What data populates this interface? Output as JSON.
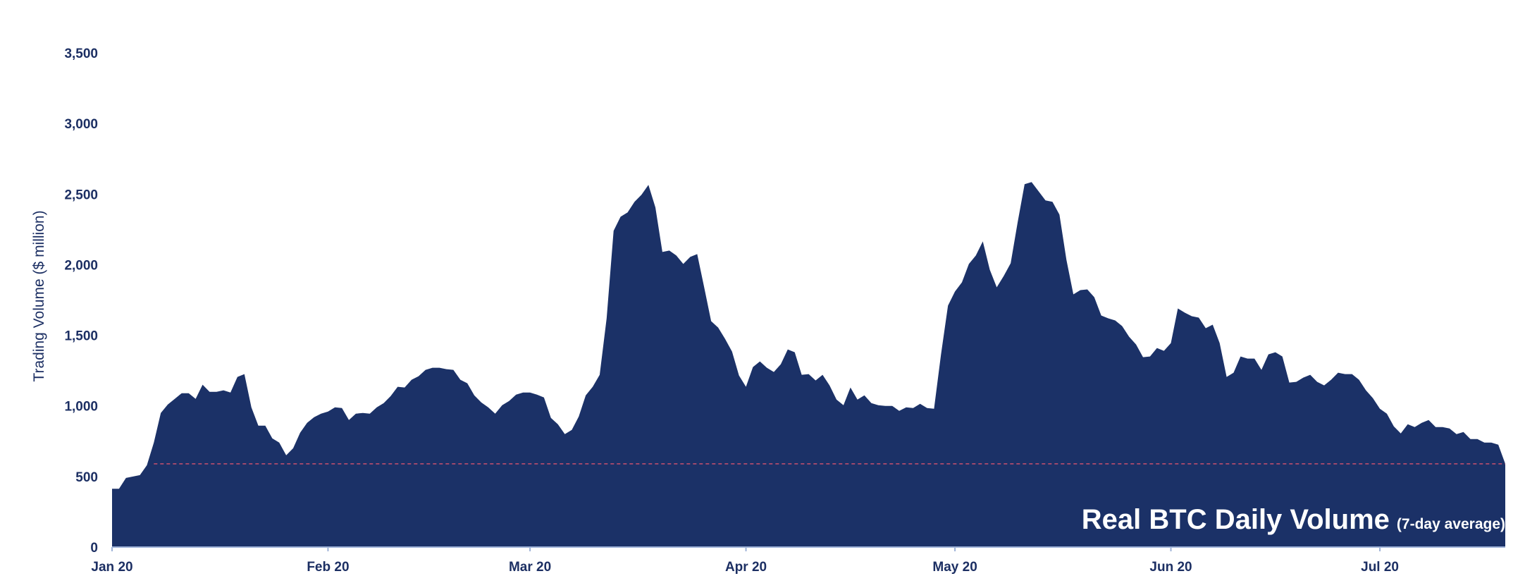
{
  "chart_data": {
    "type": "area",
    "title": "Real BTC Daily Volume",
    "subtitle": "(7-day average)",
    "y_label": "Trading Volume ($ million)",
    "color": "#1b3167",
    "x": [
      0,
      1,
      2,
      3,
      4,
      5,
      6,
      7,
      8,
      9,
      10,
      11,
      12,
      13,
      14,
      15,
      16,
      17,
      18,
      19,
      20,
      21,
      22,
      23,
      24,
      25,
      26,
      27,
      28,
      29,
      30,
      31,
      32,
      33,
      34,
      35,
      36,
      37,
      38,
      39,
      40,
      41,
      42,
      43,
      44,
      45,
      46,
      47,
      48,
      49,
      50,
      51,
      52,
      53,
      54,
      55,
      56,
      57,
      58,
      59,
      60,
      61,
      62,
      63,
      64,
      65,
      66,
      67,
      68,
      69,
      70,
      71,
      72,
      73,
      74,
      75,
      76,
      77,
      78,
      79,
      80,
      81,
      82,
      83,
      84,
      85,
      86,
      87,
      88,
      89,
      90,
      91,
      92,
      93,
      94,
      95,
      96,
      97,
      98,
      99,
      100,
      101,
      102,
      103,
      104,
      105,
      106,
      107,
      108,
      109,
      110,
      111,
      112,
      113,
      114,
      115,
      116,
      117,
      118,
      119,
      120,
      121,
      122,
      123,
      124,
      125,
      126,
      127,
      128,
      129,
      130,
      131,
      132,
      133,
      134,
      135,
      136,
      137,
      138,
      139,
      140,
      141,
      142,
      143,
      144,
      145,
      146,
      147,
      148,
      149,
      150,
      151,
      152,
      153,
      154,
      155,
      156,
      157,
      158,
      159,
      160,
      161,
      162,
      163,
      164,
      165,
      166,
      167,
      168,
      169,
      170,
      171,
      172,
      173,
      174,
      175,
      176,
      177,
      178,
      179,
      180,
      181,
      182,
      183,
      184,
      185,
      186,
      187,
      188,
      189,
      190,
      191,
      192,
      193,
      194,
      195,
      196,
      197,
      198,
      199,
      200
    ],
    "values": [
      413,
      413,
      490,
      500,
      510,
      580,
      740,
      950,
      1010,
      1050,
      1090,
      1090,
      1050,
      1150,
      1100,
      1100,
      1110,
      1095,
      1205,
      1225,
      990,
      860,
      860,
      770,
      740,
      650,
      700,
      810,
      880,
      920,
      945,
      960,
      990,
      985,
      900,
      945,
      950,
      945,
      990,
      1020,
      1070,
      1135,
      1130,
      1185,
      1210,
      1255,
      1270,
      1270,
      1260,
      1255,
      1185,
      1160,
      1075,
      1025,
      990,
      945,
      1005,
      1035,
      1080,
      1095,
      1095,
      1080,
      1060,
      915,
      870,
      800,
      830,
      925,
      1075,
      1135,
      1220,
      1620,
      2240,
      2340,
      2370,
      2445,
      2495,
      2565,
      2405,
      2090,
      2100,
      2065,
      2005,
      2055,
      2075,
      1840,
      1600,
      1555,
      1475,
      1385,
      1215,
      1135,
      1275,
      1315,
      1270,
      1240,
      1295,
      1400,
      1380,
      1220,
      1225,
      1180,
      1220,
      1145,
      1045,
      1005,
      1130,
      1045,
      1075,
      1020,
      1005,
      1000,
      1000,
      965,
      990,
      985,
      1015,
      985,
      980,
      1365,
      1710,
      1810,
      1875,
      2005,
      2065,
      2165,
      1965,
      1840,
      1920,
      2010,
      2300,
      2570,
      2585,
      2520,
      2455,
      2445,
      2355,
      2035,
      1790,
      1820,
      1825,
      1770,
      1640,
      1620,
      1605,
      1565,
      1490,
      1435,
      1345,
      1350,
      1410,
      1390,
      1445,
      1690,
      1660,
      1635,
      1625,
      1550,
      1575,
      1445,
      1205,
      1235,
      1350,
      1335,
      1335,
      1255,
      1365,
      1380,
      1350,
      1165,
      1170,
      1200,
      1220,
      1170,
      1145,
      1185,
      1235,
      1225,
      1225,
      1185,
      1110,
      1055,
      980,
      945,
      855,
      805,
      870,
      850,
      880,
      900,
      850,
      850,
      840,
      800,
      815,
      765,
      765,
      740,
      740,
      725,
      590
    ],
    "xlim": [
      0,
      200
    ],
    "xticks": [
      {
        "value": 0,
        "label": "Jan 20"
      },
      {
        "value": 31,
        "label": "Feb 20"
      },
      {
        "value": 60,
        "label": "Mar 20"
      },
      {
        "value": 91,
        "label": "Apr 20"
      },
      {
        "value": 121,
        "label": "May 20"
      },
      {
        "value": 152,
        "label": "Jun 20"
      },
      {
        "value": 182,
        "label": "Jul 20"
      }
    ],
    "ylim": [
      0,
      3500
    ],
    "yticks": [
      0,
      500,
      {
        "value": 1000,
        "label": "1,000"
      },
      {
        "value": 1500,
        "label": "1,500"
      },
      {
        "value": 2000,
        "label": "2,000"
      },
      {
        "value": 2500,
        "label": "2,500"
      },
      {
        "value": 3000,
        "label": "3,000"
      },
      {
        "value": 3500,
        "label": "3,500"
      }
    ],
    "reference_line": {
      "value": 590,
      "xlim": [
        6,
        200
      ],
      "color": "#c9506e"
    },
    "grid": false
  }
}
